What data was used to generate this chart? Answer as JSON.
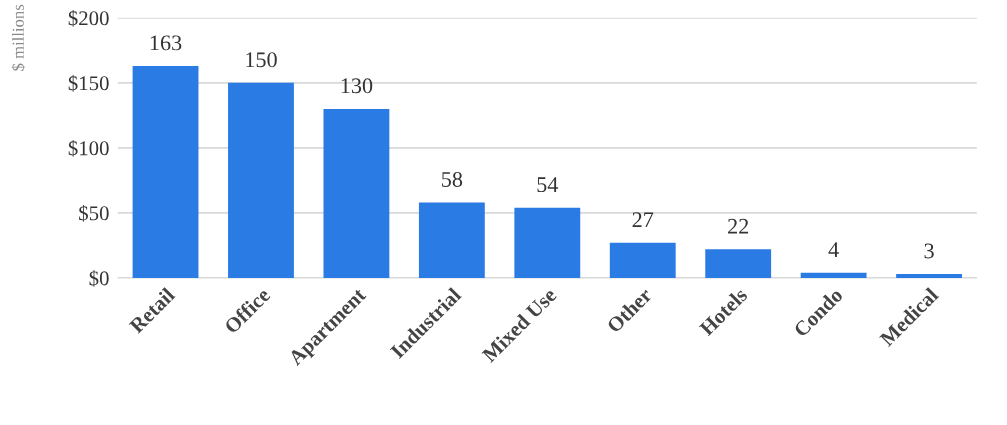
{
  "chart_data": {
    "type": "bar",
    "ylabel": "$ millions",
    "categories": [
      "Retail",
      "Office",
      "Apartment",
      "Industrial",
      "Mixed Use",
      "Other",
      "Hotels",
      "Condo",
      "Medical"
    ],
    "values": [
      163,
      150,
      130,
      58,
      54,
      27,
      22,
      4,
      3
    ],
    "color": "#2a7be4",
    "ylim": [
      0,
      200
    ],
    "yticks": [
      {
        "value": 0,
        "label": "$0"
      },
      {
        "value": 50,
        "label": "$50"
      },
      {
        "value": 100,
        "label": "$100"
      },
      {
        "value": 150,
        "label": "$150"
      },
      {
        "value": 200,
        "label": "$200"
      }
    ],
    "grid": "y",
    "data_labels": true,
    "legend": false
  }
}
